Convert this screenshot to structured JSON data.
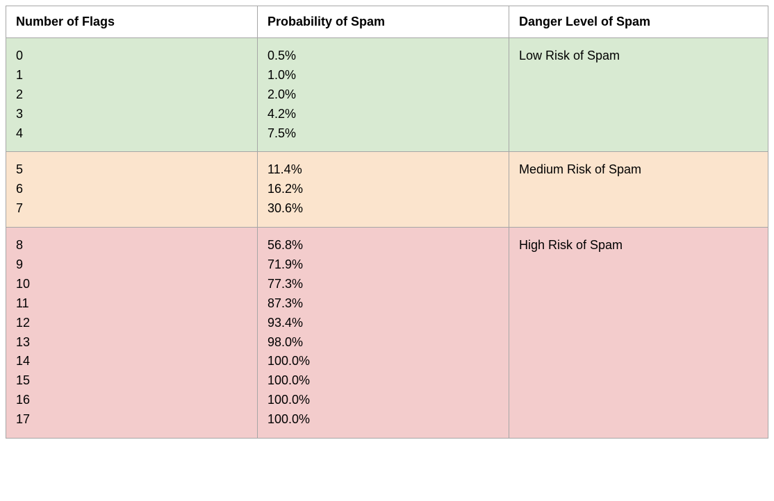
{
  "table": {
    "columns": [
      "Number of Flags",
      "Probability of Spam",
      "Danger Level of Spam"
    ],
    "column_widths_percent": [
      33,
      33,
      34
    ],
    "header_bg": "#ffffff",
    "border_color": "#a6a6a6",
    "font_family": "Arial",
    "font_size_pt": 13,
    "groups": [
      {
        "bg": "#d8ead2",
        "danger": "Low Risk of Spam",
        "flags": [
          "0",
          "1",
          "2",
          "3",
          "4"
        ],
        "probs": [
          "0.5%",
          "1.0%",
          "2.0%",
          "4.2%",
          "7.5%"
        ]
      },
      {
        "bg": "#fbe4cd",
        "danger": "Medium Risk of Spam",
        "flags": [
          "5",
          "6",
          "7"
        ],
        "probs": [
          "11.4%",
          "16.2%",
          "30.6%"
        ]
      },
      {
        "bg": "#f3cccc",
        "danger": "High Risk of Spam",
        "flags": [
          "8",
          "9",
          "10",
          "11",
          "12",
          "13",
          "14",
          "15",
          "16",
          "17"
        ],
        "probs": [
          "56.8%",
          "71.9%",
          "77.3%",
          "87.3%",
          "93.4%",
          "98.0%",
          "100.0%",
          "100.0%",
          "100.0%",
          "100.0%"
        ]
      }
    ]
  }
}
